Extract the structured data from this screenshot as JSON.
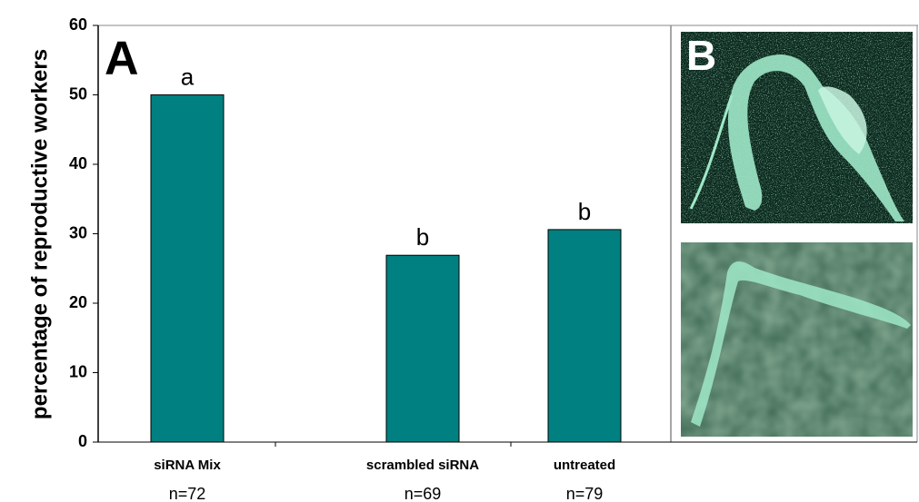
{
  "chart_data": {
    "type": "bar",
    "ylabel": "percentage of reproductive workers",
    "categories": [
      "siRNA Mix",
      "scrambled siRNA",
      "untreated"
    ],
    "values": [
      50,
      26.9,
      30.6
    ],
    "annotations": [
      "a",
      "b",
      "b"
    ],
    "sample_sizes": [
      "n=72",
      "n=69",
      "n=79"
    ],
    "panel_labels": [
      "A",
      "B"
    ],
    "color": "#008080",
    "ylim": [
      0,
      60
    ],
    "yticks": [
      0,
      10,
      20,
      30,
      40,
      50,
      60
    ],
    "grid": false
  }
}
